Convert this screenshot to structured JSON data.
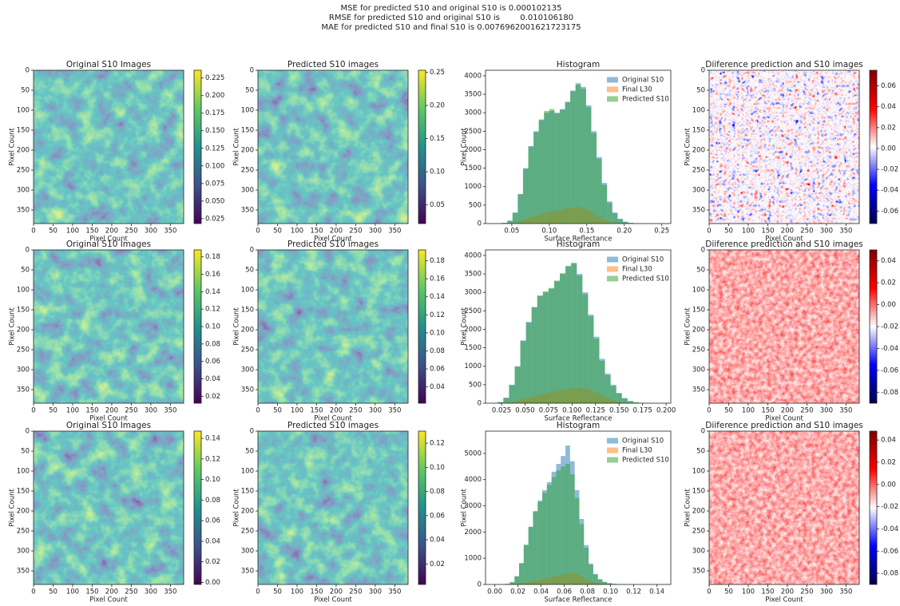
{
  "suptitle": [
    "MSE for predicted S10 and original S10 is 0.000102135",
    "RMSE for predicted S10 and original S10 is        0.010106180",
    "MAE for predicted S10 and final S10 is 0.0076962001621723175"
  ],
  "chart_data": [
    {
      "type": "image",
      "title": "Original S10 Images",
      "xlabel": "Pixel Count",
      "ylabel": "Pixel Count",
      "xlim": [
        0,
        384
      ],
      "ylim": [
        384,
        0
      ],
      "xticks": [
        0,
        50,
        100,
        150,
        200,
        250,
        300,
        350
      ],
      "yticks": [
        0,
        50,
        100,
        150,
        200,
        250,
        300,
        350
      ],
      "colormap": "viridis",
      "clim": [
        0.018,
        0.236
      ],
      "cticks": [
        0.025,
        {
          "value": 0.05,
          "label": "0.050"
        },
        0.075,
        {
          "value": 0.1,
          "label": "0.100"
        },
        0.125,
        {
          "value": 0.15,
          "label": "0.150"
        },
        0.175,
        {
          "value": 0.2,
          "label": "0.200"
        },
        0.225
      ]
    },
    {
      "type": "image",
      "title": "Predicted S10 images",
      "xlabel": "Pixel Count",
      "ylabel": "Pixel Count",
      "xlim": [
        0,
        384
      ],
      "ylim": [
        384,
        0
      ],
      "xticks": [
        0,
        50,
        100,
        150,
        200,
        250,
        300,
        350
      ],
      "yticks": [
        0,
        50,
        100,
        150,
        200,
        250,
        300,
        350
      ],
      "colormap": "viridis",
      "clim": [
        0.022,
        0.253
      ],
      "cticks": [
        0.05,
        {
          "value": 0.1,
          "label": "0.10"
        },
        0.15,
        {
          "value": 0.2,
          "label": "0.20"
        },
        0.25
      ]
    },
    {
      "type": "histogram",
      "title": "Histogram",
      "xlabel": "Surface Reflectance",
      "ylabel": "Pixel Count",
      "xlim": [
        0.015,
        0.262
      ],
      "xticks": [
        0.05,
        {
          "value": 0.1,
          "label": "0.10"
        },
        0.15,
        {
          "value": 0.2,
          "label": "0.20"
        },
        0.25
      ],
      "ylim": [
        0,
        4150
      ],
      "yticks": [
        0,
        500,
        1000,
        1500,
        2000,
        2500,
        3000,
        3500,
        4000
      ],
      "legend": "upper right",
      "bins": [
        0.03,
        0.037,
        0.044,
        0.051,
        0.058,
        0.065,
        0.072,
        0.079,
        0.086,
        0.093,
        0.1,
        0.107,
        0.114,
        0.121,
        0.128,
        0.135,
        0.142,
        0.149,
        0.156,
        0.163,
        0.17,
        0.177,
        0.184,
        0.191,
        0.198,
        0.205,
        0.212,
        0.219,
        0.226,
        0.233,
        0.24
      ],
      "series": [
        {
          "name": "Original S10",
          "color": "#1f77b4",
          "values": [
            5,
            20,
            80,
            300,
            800,
            1500,
            2100,
            2500,
            2800,
            3000,
            3050,
            3000,
            3100,
            3300,
            3600,
            3800,
            3700,
            3200,
            2500,
            1800,
            1100,
            600,
            300,
            130,
            50,
            20,
            8,
            3,
            1,
            0
          ]
        },
        {
          "name": "Final L30",
          "color": "#ff7f0e",
          "values": [
            0,
            2,
            8,
            25,
            60,
            110,
            170,
            220,
            260,
            300,
            320,
            340,
            370,
            410,
            440,
            450,
            420,
            350,
            270,
            190,
            110,
            60,
            30,
            12,
            5,
            2,
            1,
            0,
            0,
            0
          ]
        },
        {
          "name": "Predicted S10",
          "color": "#2ca02c",
          "values": [
            4,
            18,
            75,
            290,
            790,
            1480,
            2080,
            2480,
            2820,
            3050,
            3100,
            2980,
            3080,
            3280,
            3580,
            3760,
            3650,
            3150,
            2450,
            1750,
            1050,
            560,
            280,
            120,
            45,
            18,
            7,
            2,
            1,
            0
          ]
        }
      ]
    },
    {
      "type": "image",
      "title": "Diiference prediction and S10 images",
      "xlabel": "Pixel Count",
      "ylabel": "Pixel Count",
      "xlim": [
        0,
        384
      ],
      "ylim": [
        384,
        0
      ],
      "xticks": [
        0,
        50,
        100,
        150,
        200,
        250,
        300,
        350
      ],
      "yticks": [
        0,
        50,
        100,
        150,
        200,
        250,
        300,
        350
      ],
      "colormap": "seismic",
      "clim": [
        -0.072,
        0.075
      ],
      "cticks": [
        -0.06,
        -0.04,
        -0.02,
        {
          "value": 0,
          "label": "0.00"
        },
        0.02,
        0.04,
        0.06
      ]
    },
    {
      "type": "image",
      "title": "Original S10 Images",
      "xlabel": "Pixel Count",
      "ylabel": "Pixel Count",
      "xlim": [
        0,
        384
      ],
      "ylim": [
        384,
        0
      ],
      "xticks": [
        0,
        50,
        100,
        150,
        200,
        250,
        300,
        350
      ],
      "yticks": [
        0,
        50,
        100,
        150,
        200,
        250,
        300,
        350
      ],
      "colormap": "viridis",
      "clim": [
        0.012,
        0.188
      ],
      "cticks": [
        0.02,
        0.04,
        0.06,
        0.08,
        {
          "value": 0.1,
          "label": "0.10"
        },
        0.12,
        0.14,
        0.16,
        0.18
      ]
    },
    {
      "type": "image",
      "title": "Predicted S10 images",
      "xlabel": "Pixel Count",
      "ylabel": "Pixel Count",
      "xlim": [
        0,
        384
      ],
      "ylim": [
        384,
        0
      ],
      "xticks": [
        0,
        50,
        100,
        150,
        200,
        250,
        300,
        350
      ],
      "yticks": [
        0,
        50,
        100,
        150,
        200,
        250,
        300,
        350
      ],
      "colormap": "viridis",
      "clim": [
        0.022,
        0.192
      ],
      "cticks": [
        0.04,
        0.06,
        0.08,
        {
          "value": 0.1,
          "label": "0.10"
        },
        0.12,
        0.14,
        0.16,
        0.18
      ]
    },
    {
      "type": "histogram",
      "title": "Histogram",
      "xlabel": "Surface Reflectance",
      "ylabel": "Pixel Count",
      "xlim": [
        0.008,
        0.205
      ],
      "xticks": [
        0.025,
        {
          "value": 0.05,
          "label": "0.050"
        },
        0.075,
        {
          "value": 0.1,
          "label": "0.100"
        },
        0.125,
        {
          "value": 0.15,
          "label": "0.150"
        },
        0.175,
        {
          "value": 0.2,
          "label": "0.200"
        }
      ],
      "ylim": [
        0,
        4150
      ],
      "yticks": [
        0,
        500,
        1000,
        1500,
        2000,
        2500,
        3000,
        3500,
        4000
      ],
      "legend": "upper right",
      "bins": [
        0.015,
        0.021,
        0.027,
        0.033,
        0.039,
        0.045,
        0.051,
        0.057,
        0.063,
        0.069,
        0.075,
        0.081,
        0.087,
        0.093,
        0.099,
        0.105,
        0.111,
        0.117,
        0.123,
        0.129,
        0.135,
        0.141,
        0.147,
        0.153,
        0.159,
        0.165,
        0.171,
        0.177,
        0.183,
        0.189,
        0.195
      ],
      "series": [
        {
          "name": "Original S10",
          "color": "#1f77b4",
          "values": [
            5,
            30,
            150,
            500,
            1000,
            1700,
            2200,
            2600,
            2900,
            3000,
            3100,
            3300,
            3500,
            3700,
            3800,
            3500,
            3000,
            2400,
            1800,
            1200,
            800,
            500,
            280,
            140,
            60,
            25,
            10,
            4,
            1,
            0
          ]
        },
        {
          "name": "Final L30",
          "color": "#ff7f0e",
          "values": [
            0,
            3,
            15,
            40,
            70,
            110,
            150,
            190,
            230,
            270,
            300,
            330,
            360,
            390,
            410,
            420,
            400,
            350,
            280,
            200,
            130,
            80,
            40,
            20,
            8,
            3,
            1,
            0,
            0,
            0
          ]
        },
        {
          "name": "Predicted S10",
          "color": "#2ca02c",
          "values": [
            4,
            28,
            140,
            490,
            990,
            1680,
            2180,
            2600,
            2920,
            3030,
            3120,
            3320,
            3520,
            3720,
            3780,
            3460,
            2950,
            2350,
            1750,
            1150,
            760,
            470,
            260,
            130,
            55,
            22,
            9,
            3,
            1,
            0
          ]
        }
      ]
    },
    {
      "type": "image",
      "title": "Diiference prediction and S10 images",
      "xlabel": "Pixel Count",
      "ylabel": "Pixel Count",
      "xlim": [
        0,
        384
      ],
      "ylim": [
        384,
        0
      ],
      "xticks": [
        0,
        50,
        100,
        150,
        200,
        250,
        300,
        350
      ],
      "yticks": [
        0,
        50,
        100,
        150,
        200,
        250,
        300,
        350
      ],
      "colormap": "seismic-red",
      "clim": [
        -0.09,
        0.05
      ],
      "cticks": [
        -0.08,
        -0.06,
        -0.04,
        -0.02,
        {
          "value": 0,
          "label": "0.00"
        },
        0.02,
        0.04
      ]
    },
    {
      "type": "image",
      "title": "Original S10 Images",
      "xlabel": "Pixel Count",
      "ylabel": "Pixel Count",
      "xlim": [
        0,
        384
      ],
      "ylim": [
        384,
        0
      ],
      "xticks": [
        0,
        50,
        100,
        150,
        200,
        250,
        300,
        350
      ],
      "yticks": [
        0,
        50,
        100,
        150,
        200,
        250,
        300,
        350
      ],
      "colormap": "viridis",
      "clim": [
        -0.002,
        0.147
      ],
      "cticks": [
        {
          "value": 0,
          "label": "0.00"
        },
        0.02,
        0.04,
        0.06,
        0.08,
        {
          "value": 0.1,
          "label": "0.10"
        },
        0.12,
        0.14
      ]
    },
    {
      "type": "image",
      "title": "Predicted S10 images",
      "xlabel": "Pixel Count",
      "ylabel": "Pixel Count",
      "xlim": [
        0,
        384
      ],
      "ylim": [
        384,
        0
      ],
      "xticks": [
        0,
        50,
        100,
        150,
        200,
        250,
        300,
        350
      ],
      "yticks": [
        0,
        50,
        100,
        150,
        200,
        250,
        300,
        350
      ],
      "colormap": "viridis",
      "clim": [
        0.003,
        0.13
      ],
      "cticks": [
        0.02,
        0.04,
        0.06,
        0.08,
        {
          "value": 0.1,
          "label": "0.10"
        },
        0.12
      ]
    },
    {
      "type": "histogram",
      "title": "Histogram",
      "xlabel": "Surface Reflectance",
      "ylabel": "Pixel Count",
      "xlim": [
        -0.008,
        0.152
      ],
      "xticks": [
        {
          "value": 0,
          "label": "0.00"
        },
        0.02,
        0.04,
        0.06,
        0.08,
        {
          "value": 0.1,
          "label": "0.10"
        },
        0.12,
        0.14
      ],
      "ylim": [
        0,
        5850
      ],
      "yticks": [
        0,
        1000,
        2000,
        3000,
        4000,
        5000
      ],
      "legend": "upper right",
      "bins": [
        0.005,
        0.009,
        0.013,
        0.017,
        0.021,
        0.025,
        0.029,
        0.033,
        0.037,
        0.041,
        0.045,
        0.049,
        0.053,
        0.057,
        0.061,
        0.065,
        0.069,
        0.073,
        0.077,
        0.081,
        0.085,
        0.089,
        0.093,
        0.097,
        0.101,
        0.105,
        0.109,
        0.113,
        0.117,
        0.121,
        0.125
      ],
      "series": [
        {
          "name": "Original S10",
          "color": "#1f77b4",
          "values": [
            5,
            20,
            80,
            300,
            800,
            1500,
            2200,
            2800,
            3200,
            3600,
            3900,
            4300,
            4600,
            4900,
            5300,
            4700,
            3600,
            2500,
            1500,
            800,
            400,
            200,
            100,
            50,
            25,
            12,
            6,
            3,
            1,
            0
          ]
        },
        {
          "name": "Final L30",
          "color": "#ff7f0e",
          "values": [
            0,
            2,
            8,
            20,
            40,
            70,
            100,
            140,
            180,
            220,
            260,
            300,
            340,
            380,
            420,
            440,
            400,
            300,
            200,
            120,
            70,
            35,
            15,
            7,
            3,
            1,
            0,
            0,
            0,
            0
          ]
        },
        {
          "name": "Predicted S10",
          "color": "#2ca02c",
          "values": [
            5,
            25,
            90,
            320,
            820,
            1520,
            2200,
            2780,
            3150,
            3500,
            3800,
            4100,
            4350,
            4500,
            4600,
            4200,
            3300,
            2300,
            1400,
            750,
            380,
            190,
            95,
            45,
            22,
            10,
            5,
            2,
            1,
            0
          ]
        }
      ]
    },
    {
      "type": "image",
      "title": "Diiference prediction and S10 images",
      "xlabel": "Pixel Count",
      "ylabel": "Pixel Count",
      "xlim": [
        0,
        384
      ],
      "ylim": [
        384,
        0
      ],
      "xticks": [
        0,
        50,
        100,
        150,
        200,
        250,
        300,
        350
      ],
      "yticks": [
        0,
        50,
        100,
        150,
        200,
        250,
        300,
        350
      ],
      "colormap": "seismic-red",
      "clim": [
        -0.09,
        0.048
      ],
      "cticks": [
        -0.08,
        -0.06,
        -0.04,
        -0.02,
        {
          "value": 0,
          "label": "0.00"
        },
        0.02,
        0.04
      ]
    }
  ]
}
